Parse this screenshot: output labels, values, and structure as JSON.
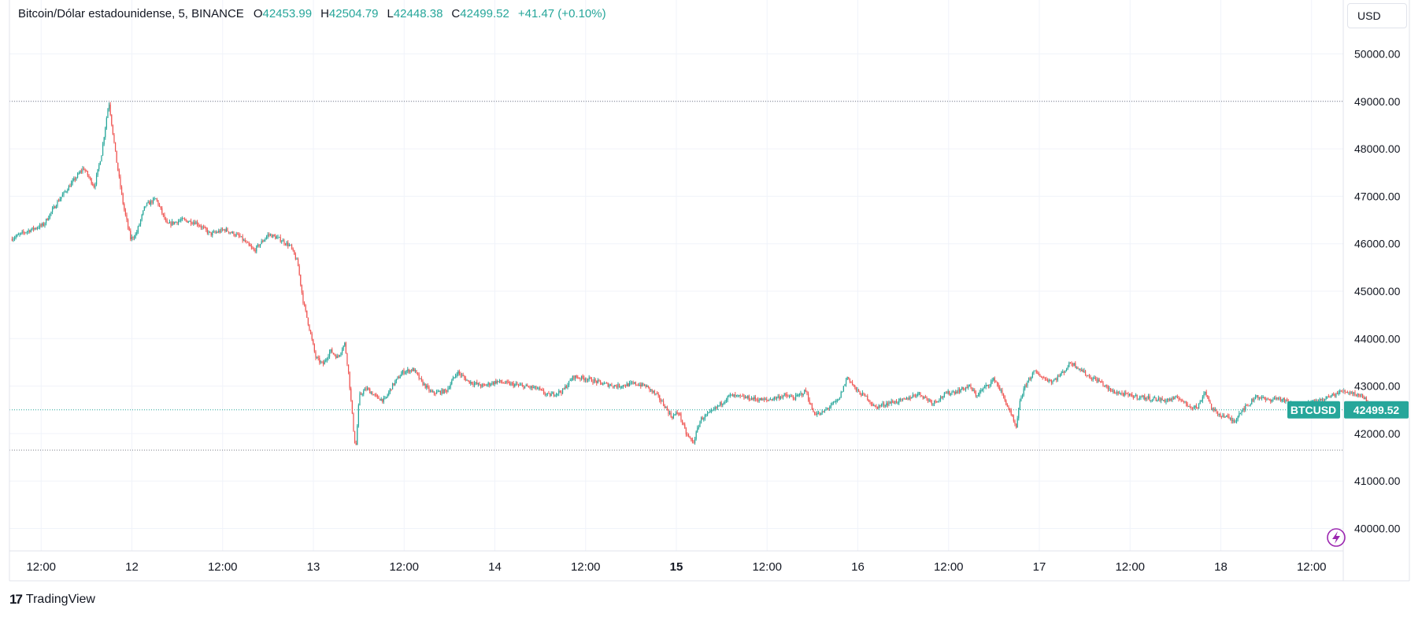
{
  "header": {
    "symbol": "Bitcoin/Dólar estadounidense, 5, BINANCE",
    "open_label": "O",
    "open": "42453.99",
    "high_label": "H",
    "high": "42504.79",
    "low_label": "L",
    "low": "42448.38",
    "close_label": "C",
    "close": "42499.52",
    "change": "+41.47 (+0.10%)"
  },
  "currency_button": "USD",
  "price_tag": {
    "ticker": "BTCUSD",
    "price": "42499.52"
  },
  "brand": {
    "logo": "17",
    "name": "TradingView"
  },
  "colors": {
    "up": "#26a69a",
    "down": "#ef5350",
    "grid": "#f0f3fa",
    "axis_text": "#131722",
    "accent": "#26a69a",
    "bolt": "#9c27b0"
  },
  "icons": {
    "bolt": "lightning-bolt-icon"
  },
  "chart_data": {
    "type": "candlestick",
    "interval": "5",
    "exchange": "BINANCE",
    "y_axis": {
      "ticks": [
        "50000.00",
        "49000.00",
        "48000.00",
        "47000.00",
        "46000.00",
        "45000.00",
        "44000.00",
        "43000.00",
        "42000.00",
        "41000.00",
        "40000.00"
      ],
      "range": [
        39500,
        50600
      ]
    },
    "x_axis": {
      "ticks": [
        {
          "label": "12:00",
          "t": 0.5
        },
        {
          "label": "12",
          "t": 1.0
        },
        {
          "label": "12:00",
          "t": 1.5
        },
        {
          "label": "13",
          "t": 2.0
        },
        {
          "label": "12:00",
          "t": 2.5
        },
        {
          "label": "14",
          "t": 3.0
        },
        {
          "label": "12:00",
          "t": 3.5
        },
        {
          "label": "15",
          "t": 4.0,
          "bold": true
        },
        {
          "label": "12:00",
          "t": 4.5
        },
        {
          "label": "16",
          "t": 5.0
        },
        {
          "label": "12:00",
          "t": 5.5
        },
        {
          "label": "17",
          "t": 6.0
        },
        {
          "label": "12:00",
          "t": 6.5
        },
        {
          "label": "18",
          "t": 7.0
        },
        {
          "label": "12:00",
          "t": 7.5
        }
      ],
      "unit": "days"
    },
    "reference_lines": {
      "high": 49000,
      "low": 41650,
      "last": 42499.52
    },
    "price_path": [
      [
        0.34,
        46100
      ],
      [
        0.42,
        46250
      ],
      [
        0.52,
        46400
      ],
      [
        0.6,
        46900
      ],
      [
        0.68,
        47300
      ],
      [
        0.74,
        47600
      ],
      [
        0.8,
        47200
      ],
      [
        0.84,
        47900
      ],
      [
        0.88,
        49000
      ],
      [
        0.92,
        47800
      ],
      [
        0.96,
        46800
      ],
      [
        1.0,
        46100
      ],
      [
        1.03,
        46200
      ],
      [
        1.08,
        46800
      ],
      [
        1.14,
        46950
      ],
      [
        1.2,
        46400
      ],
      [
        1.28,
        46500
      ],
      [
        1.36,
        46450
      ],
      [
        1.44,
        46200
      ],
      [
        1.52,
        46300
      ],
      [
        1.6,
        46150
      ],
      [
        1.68,
        45850
      ],
      [
        1.76,
        46200
      ],
      [
        1.82,
        46100
      ],
      [
        1.88,
        45950
      ],
      [
        1.92,
        45600
      ],
      [
        1.95,
        44800
      ],
      [
        1.98,
        44300
      ],
      [
        2.02,
        43600
      ],
      [
        2.06,
        43450
      ],
      [
        2.1,
        43750
      ],
      [
        2.14,
        43600
      ],
      [
        2.18,
        43900
      ],
      [
        2.2,
        43300
      ],
      [
        2.23,
        42000
      ],
      [
        2.24,
        41650
      ],
      [
        2.26,
        42800
      ],
      [
        2.3,
        42950
      ],
      [
        2.36,
        42750
      ],
      [
        2.4,
        42700
      ],
      [
        2.44,
        43000
      ],
      [
        2.5,
        43300
      ],
      [
        2.56,
        43350
      ],
      [
        2.6,
        43100
      ],
      [
        2.66,
        42850
      ],
      [
        2.74,
        42900
      ],
      [
        2.8,
        43300
      ],
      [
        2.86,
        43100
      ],
      [
        2.94,
        43000
      ],
      [
        3.02,
        43100
      ],
      [
        3.08,
        43050
      ],
      [
        3.16,
        43000
      ],
      [
        3.24,
        42950
      ],
      [
        3.3,
        42800
      ],
      [
        3.38,
        42900
      ],
      [
        3.44,
        43200
      ],
      [
        3.52,
        43150
      ],
      [
        3.6,
        43050
      ],
      [
        3.68,
        43000
      ],
      [
        3.78,
        43050
      ],
      [
        3.84,
        43000
      ],
      [
        3.9,
        42800
      ],
      [
        3.94,
        42600
      ],
      [
        3.98,
        42350
      ],
      [
        4.02,
        42450
      ],
      [
        4.06,
        42000
      ],
      [
        4.1,
        41800
      ],
      [
        4.14,
        42300
      ],
      [
        4.2,
        42450
      ],
      [
        4.3,
        42800
      ],
      [
        4.4,
        42750
      ],
      [
        4.5,
        42700
      ],
      [
        4.6,
        42800
      ],
      [
        4.66,
        42750
      ],
      [
        4.72,
        42900
      ],
      [
        4.76,
        42450
      ],
      [
        4.8,
        42400
      ],
      [
        4.86,
        42600
      ],
      [
        4.9,
        42700
      ],
      [
        4.95,
        43200
      ],
      [
        5.0,
        42900
      ],
      [
        5.06,
        42750
      ],
      [
        5.1,
        42550
      ],
      [
        5.18,
        42650
      ],
      [
        5.26,
        42700
      ],
      [
        5.34,
        42850
      ],
      [
        5.42,
        42650
      ],
      [
        5.5,
        42850
      ],
      [
        5.56,
        42900
      ],
      [
        5.62,
        43000
      ],
      [
        5.66,
        42800
      ],
      [
        5.7,
        42950
      ],
      [
        5.76,
        43150
      ],
      [
        5.8,
        42850
      ],
      [
        5.84,
        42500
      ],
      [
        5.88,
        42100
      ],
      [
        5.9,
        42700
      ],
      [
        5.94,
        43100
      ],
      [
        5.98,
        43300
      ],
      [
        6.04,
        43150
      ],
      [
        6.08,
        43100
      ],
      [
        6.14,
        43300
      ],
      [
        6.18,
        43500
      ],
      [
        6.22,
        43400
      ],
      [
        6.28,
        43200
      ],
      [
        6.34,
        43100
      ],
      [
        6.4,
        42900
      ],
      [
        6.5,
        42800
      ],
      [
        6.6,
        42750
      ],
      [
        6.7,
        42700
      ],
      [
        6.78,
        42750
      ],
      [
        6.82,
        42600
      ],
      [
        6.88,
        42550
      ],
      [
        6.92,
        42900
      ],
      [
        6.96,
        42500
      ],
      [
        7.0,
        42400
      ],
      [
        7.04,
        42350
      ],
      [
        7.08,
        42250
      ],
      [
        7.12,
        42500
      ],
      [
        7.16,
        42600
      ],
      [
        7.2,
        42800
      ],
      [
        7.26,
        42700
      ],
      [
        7.32,
        42750
      ],
      [
        7.38,
        42650
      ],
      [
        7.44,
        42550
      ],
      [
        7.5,
        42650
      ],
      [
        7.56,
        42700
      ],
      [
        7.62,
        42800
      ],
      [
        7.68,
        42900
      ],
      [
        7.74,
        42850
      ],
      [
        7.78,
        42800
      ],
      [
        7.8,
        42750
      ],
      [
        7.83,
        42500
      ]
    ]
  }
}
